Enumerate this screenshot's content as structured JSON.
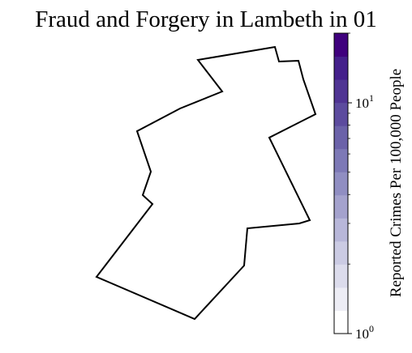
{
  "title": "Fraud and Forgery in Lambeth in 01",
  "colorbar": {
    "label": "Reported Crimes Per 100,000 People",
    "scale": "log",
    "range": [
      1,
      20
    ],
    "ticks": [
      {
        "base": "10",
        "exp": "0",
        "value": 1
      },
      {
        "base": "10",
        "exp": "1",
        "value": 10
      }
    ],
    "colors": [
      "#ffffff",
      "#ededf5",
      "#dcdcec",
      "#cbcbe3",
      "#b8b7d9",
      "#a4a2cd",
      "#908ec2",
      "#7d79b6",
      "#6b62a9",
      "#5c4b9e",
      "#4f3493",
      "#44208b",
      "#3f007d"
    ]
  },
  "map": {
    "region": "Lambeth",
    "fill": "#ffffff",
    "stroke": "#000000"
  }
}
